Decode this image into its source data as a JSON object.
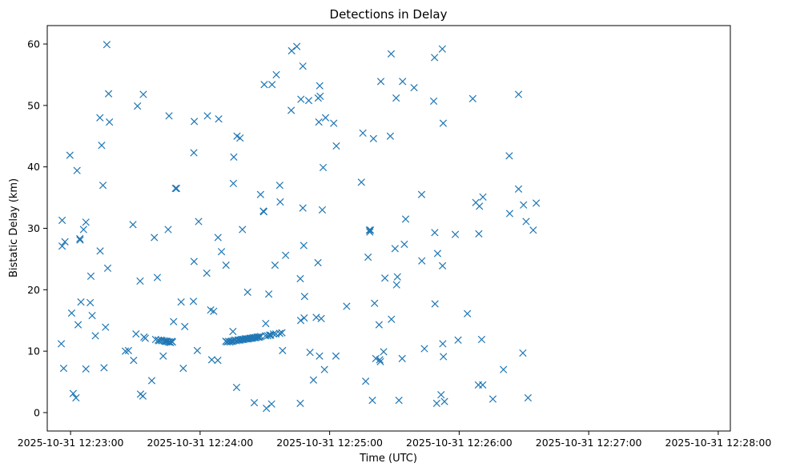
{
  "chart_data": {
    "type": "scatter",
    "title": "Detections in Delay",
    "xlabel": "Time (UTC)",
    "ylabel": "Bistatic Delay (km)",
    "marker": "x",
    "color": "#1f77b4",
    "grid": false,
    "x_unit": "seconds since 2025-10-31 12:23:00 UTC",
    "xlim": [
      -10.8,
      305.6
    ],
    "ylim": [
      -3.0,
      63.0
    ],
    "x_ticks": [
      {
        "value": 0,
        "label": "2025-10-31 12:23:00"
      },
      {
        "value": 60,
        "label": "2025-10-31 12:24:00"
      },
      {
        "value": 120,
        "label": "2025-10-31 12:25:00"
      },
      {
        "value": 180,
        "label": "2025-10-31 12:26:00"
      },
      {
        "value": 240,
        "label": "2025-10-31 12:27:00"
      },
      {
        "value": 300,
        "label": "2025-10-31 12:28:00"
      }
    ],
    "y_ticks": [
      {
        "value": 0,
        "label": "0"
      },
      {
        "value": 10,
        "label": "10"
      },
      {
        "value": 20,
        "label": "20"
      },
      {
        "value": 30,
        "label": "30"
      },
      {
        "value": 40,
        "label": "40"
      },
      {
        "value": 50,
        "label": "50"
      },
      {
        "value": 60,
        "label": "60"
      }
    ],
    "points": [
      [
        -4.3,
        11.2
      ],
      [
        -3.9,
        31.3
      ],
      [
        -3.9,
        27.1
      ],
      [
        -3.2,
        7.2
      ],
      [
        -2.6,
        27.8
      ],
      [
        -0.3,
        41.9
      ],
      [
        0.5,
        16.2
      ],
      [
        1.2,
        3.1
      ],
      [
        2.5,
        2.4
      ],
      [
        3.0,
        39.4
      ],
      [
        3.5,
        14.3
      ],
      [
        4.3,
        28.3
      ],
      [
        4.4,
        28.1
      ],
      [
        4.8,
        18.0
      ],
      [
        6.0,
        29.8
      ],
      [
        7.1,
        31.0
      ],
      [
        7.1,
        7.1
      ],
      [
        9.1,
        17.9
      ],
      [
        9.4,
        22.2
      ],
      [
        10.0,
        15.8
      ],
      [
        11.5,
        12.5
      ],
      [
        13.6,
        48.0
      ],
      [
        13.7,
        26.3
      ],
      [
        14.4,
        43.5
      ],
      [
        15.0,
        37.0
      ],
      [
        15.5,
        7.3
      ],
      [
        16.2,
        13.9
      ],
      [
        16.8,
        59.9
      ],
      [
        17.2,
        23.5
      ],
      [
        17.6,
        51.9
      ],
      [
        18.0,
        47.3
      ],
      [
        25.4,
        10.0
      ],
      [
        26.8,
        10.1
      ],
      [
        28.9,
        30.6
      ],
      [
        29.2,
        8.5
      ],
      [
        30.3,
        12.8
      ],
      [
        31.0,
        49.9
      ],
      [
        32.2,
        21.4
      ],
      [
        32.4,
        3.0
      ],
      [
        33.5,
        2.7
      ],
      [
        33.7,
        51.8
      ],
      [
        34.0,
        12.3
      ],
      [
        34.6,
        12.1
      ],
      [
        37.6,
        5.2
      ],
      [
        38.8,
        28.5
      ],
      [
        39.4,
        11.9
      ],
      [
        40.2,
        22.0
      ],
      [
        40.6,
        11.8
      ],
      [
        41.0,
        11.7
      ],
      [
        41.9,
        11.8
      ],
      [
        42.4,
        11.7
      ],
      [
        42.9,
        9.2
      ],
      [
        43.3,
        11.7
      ],
      [
        43.8,
        11.6
      ],
      [
        44.4,
        11.6
      ],
      [
        44.8,
        11.6
      ],
      [
        45.2,
        29.8
      ],
      [
        45.4,
        11.5
      ],
      [
        45.6,
        48.3
      ],
      [
        45.8,
        11.5
      ],
      [
        46.3,
        11.4
      ],
      [
        46.8,
        11.6
      ],
      [
        47.2,
        11.5
      ],
      [
        47.7,
        14.8
      ],
      [
        48.6,
        36.5
      ],
      [
        49.1,
        36.5
      ],
      [
        51.2,
        18.0
      ],
      [
        52.2,
        7.2
      ],
      [
        52.9,
        14.0
      ],
      [
        56.9,
        18.1
      ],
      [
        57.1,
        42.3
      ],
      [
        57.2,
        24.6
      ],
      [
        57.3,
        47.4
      ],
      [
        58.7,
        10.1
      ],
      [
        59.3,
        31.1
      ],
      [
        63.1,
        22.7
      ],
      [
        63.4,
        48.3
      ],
      [
        64.9,
        16.7
      ],
      [
        65.4,
        8.6
      ],
      [
        66.3,
        16.5
      ],
      [
        68.2,
        8.5
      ],
      [
        68.3,
        28.5
      ],
      [
        68.6,
        47.8
      ],
      [
        69.9,
        26.2
      ],
      [
        71.9,
        11.6
      ],
      [
        72.0,
        24.0
      ],
      [
        72.5,
        11.5
      ],
      [
        73.2,
        11.6
      ],
      [
        73.8,
        11.5
      ],
      [
        74.4,
        11.6
      ],
      [
        75.0,
        11.6
      ],
      [
        75.2,
        13.2
      ],
      [
        75.4,
        37.3
      ],
      [
        75.6,
        11.7
      ],
      [
        75.6,
        41.6
      ],
      [
        76.2,
        11.8
      ],
      [
        76.8,
        11.7
      ],
      [
        76.9,
        4.1
      ],
      [
        77.1,
        45.0
      ],
      [
        77.5,
        11.8
      ],
      [
        78.0,
        11.8
      ],
      [
        78.5,
        44.7
      ],
      [
        78.6,
        11.8
      ],
      [
        79.2,
        11.9
      ],
      [
        79.6,
        29.8
      ],
      [
        79.7,
        11.9
      ],
      [
        80.2,
        11.9
      ],
      [
        80.8,
        12.0
      ],
      [
        81.3,
        12.0
      ],
      [
        81.9,
        12.0
      ],
      [
        82.0,
        19.6
      ],
      [
        82.4,
        12.0
      ],
      [
        83.0,
        12.1
      ],
      [
        83.5,
        12.1
      ],
      [
        84.1,
        12.1
      ],
      [
        84.6,
        12.2
      ],
      [
        85.1,
        1.6
      ],
      [
        85.3,
        12.2
      ],
      [
        85.8,
        12.2
      ],
      [
        86.4,
        12.3
      ],
      [
        87.0,
        12.3
      ],
      [
        87.5,
        12.3
      ],
      [
        88.0,
        35.5
      ],
      [
        88.1,
        12.4
      ],
      [
        89.3,
        32.8
      ],
      [
        89.5,
        32.7
      ],
      [
        89.7,
        53.4
      ],
      [
        90.3,
        12.5
      ],
      [
        90.4,
        14.5
      ],
      [
        90.7,
        0.7
      ],
      [
        91.3,
        12.5
      ],
      [
        91.8,
        19.3
      ],
      [
        92.2,
        12.6
      ],
      [
        92.7,
        12.6
      ],
      [
        93.1,
        1.4
      ],
      [
        93.3,
        53.4
      ],
      [
        94.0,
        12.8
      ],
      [
        94.7,
        24.0
      ],
      [
        95.1,
        12.8
      ],
      [
        95.3,
        55.0
      ],
      [
        96.9,
        12.9
      ],
      [
        96.9,
        37.0
      ],
      [
        97.1,
        34.3
      ],
      [
        97.9,
        13.0
      ],
      [
        98.2,
        10.1
      ],
      [
        99.6,
        25.6
      ],
      [
        102.2,
        49.2
      ],
      [
        102.4,
        58.9
      ],
      [
        104.8,
        59.6
      ],
      [
        106.4,
        1.5
      ],
      [
        106.4,
        21.8
      ],
      [
        106.6,
        15.0
      ],
      [
        106.7,
        51.0
      ],
      [
        107.6,
        33.3
      ],
      [
        107.6,
        56.4
      ],
      [
        108.0,
        27.2
      ],
      [
        108.2,
        15.4
      ],
      [
        108.4,
        18.9
      ],
      [
        110.3,
        50.8
      ],
      [
        110.9,
        9.8
      ],
      [
        112.5,
        5.3
      ],
      [
        113.8,
        15.5
      ],
      [
        114.6,
        24.4
      ],
      [
        114.7,
        51.2
      ],
      [
        115.0,
        47.3
      ],
      [
        115.3,
        9.2
      ],
      [
        115.4,
        53.2
      ],
      [
        115.6,
        51.5
      ],
      [
        116.1,
        15.3
      ],
      [
        116.6,
        33.0
      ],
      [
        117.0,
        39.9
      ],
      [
        117.6,
        7.0
      ],
      [
        118.1,
        48.0
      ],
      [
        121.9,
        47.1
      ],
      [
        122.9,
        9.2
      ],
      [
        123.1,
        43.4
      ],
      [
        127.9,
        17.3
      ],
      [
        134.7,
        37.5
      ],
      [
        135.4,
        45.5
      ],
      [
        136.7,
        5.1
      ],
      [
        137.8,
        25.3
      ],
      [
        138.4,
        29.7
      ],
      [
        138.6,
        29.4
      ],
      [
        138.9,
        29.7
      ],
      [
        139.8,
        2.0
      ],
      [
        140.3,
        44.6
      ],
      [
        140.8,
        17.8
      ],
      [
        141.4,
        8.8
      ],
      [
        142.9,
        14.3
      ],
      [
        143.2,
        8.6
      ],
      [
        143.5,
        8.3
      ],
      [
        143.7,
        53.9
      ],
      [
        145.0,
        9.9
      ],
      [
        145.6,
        21.9
      ],
      [
        148.1,
        45.0
      ],
      [
        148.5,
        58.4
      ],
      [
        148.6,
        15.2
      ],
      [
        150.3,
        26.7
      ],
      [
        150.8,
        51.2
      ],
      [
        151.0,
        20.8
      ],
      [
        151.4,
        22.1
      ],
      [
        152.1,
        2.0
      ],
      [
        153.6,
        8.8
      ],
      [
        153.8,
        53.9
      ],
      [
        154.6,
        27.4
      ],
      [
        155.2,
        31.5
      ],
      [
        159.1,
        52.9
      ],
      [
        162.6,
        35.5
      ],
      [
        162.7,
        24.7
      ],
      [
        163.9,
        10.4
      ],
      [
        168.2,
        50.7
      ],
      [
        168.6,
        57.8
      ],
      [
        168.7,
        29.3
      ],
      [
        168.8,
        17.7
      ],
      [
        169.6,
        1.5
      ],
      [
        170.0,
        25.9
      ],
      [
        171.6,
        2.9
      ],
      [
        172.2,
        59.2
      ],
      [
        172.3,
        23.9
      ],
      [
        172.4,
        11.2
      ],
      [
        172.6,
        47.1
      ],
      [
        172.7,
        9.1
      ],
      [
        173.2,
        1.8
      ],
      [
        178.2,
        29.0
      ],
      [
        179.5,
        11.8
      ],
      [
        183.8,
        16.1
      ],
      [
        186.3,
        51.1
      ],
      [
        187.7,
        34.2
      ],
      [
        188.9,
        4.5
      ],
      [
        189.1,
        29.1
      ],
      [
        189.4,
        33.6
      ],
      [
        190.4,
        11.9
      ],
      [
        190.9,
        4.5
      ],
      [
        191.0,
        35.1
      ],
      [
        195.6,
        2.2
      ],
      [
        200.5,
        7.0
      ],
      [
        203.2,
        41.8
      ],
      [
        203.4,
        32.4
      ],
      [
        207.5,
        36.4
      ],
      [
        207.5,
        51.8
      ],
      [
        209.5,
        9.7
      ],
      [
        209.8,
        33.8
      ],
      [
        211.0,
        31.1
      ],
      [
        211.9,
        2.4
      ],
      [
        214.3,
        29.7
      ],
      [
        215.7,
        34.1
      ]
    ]
  }
}
